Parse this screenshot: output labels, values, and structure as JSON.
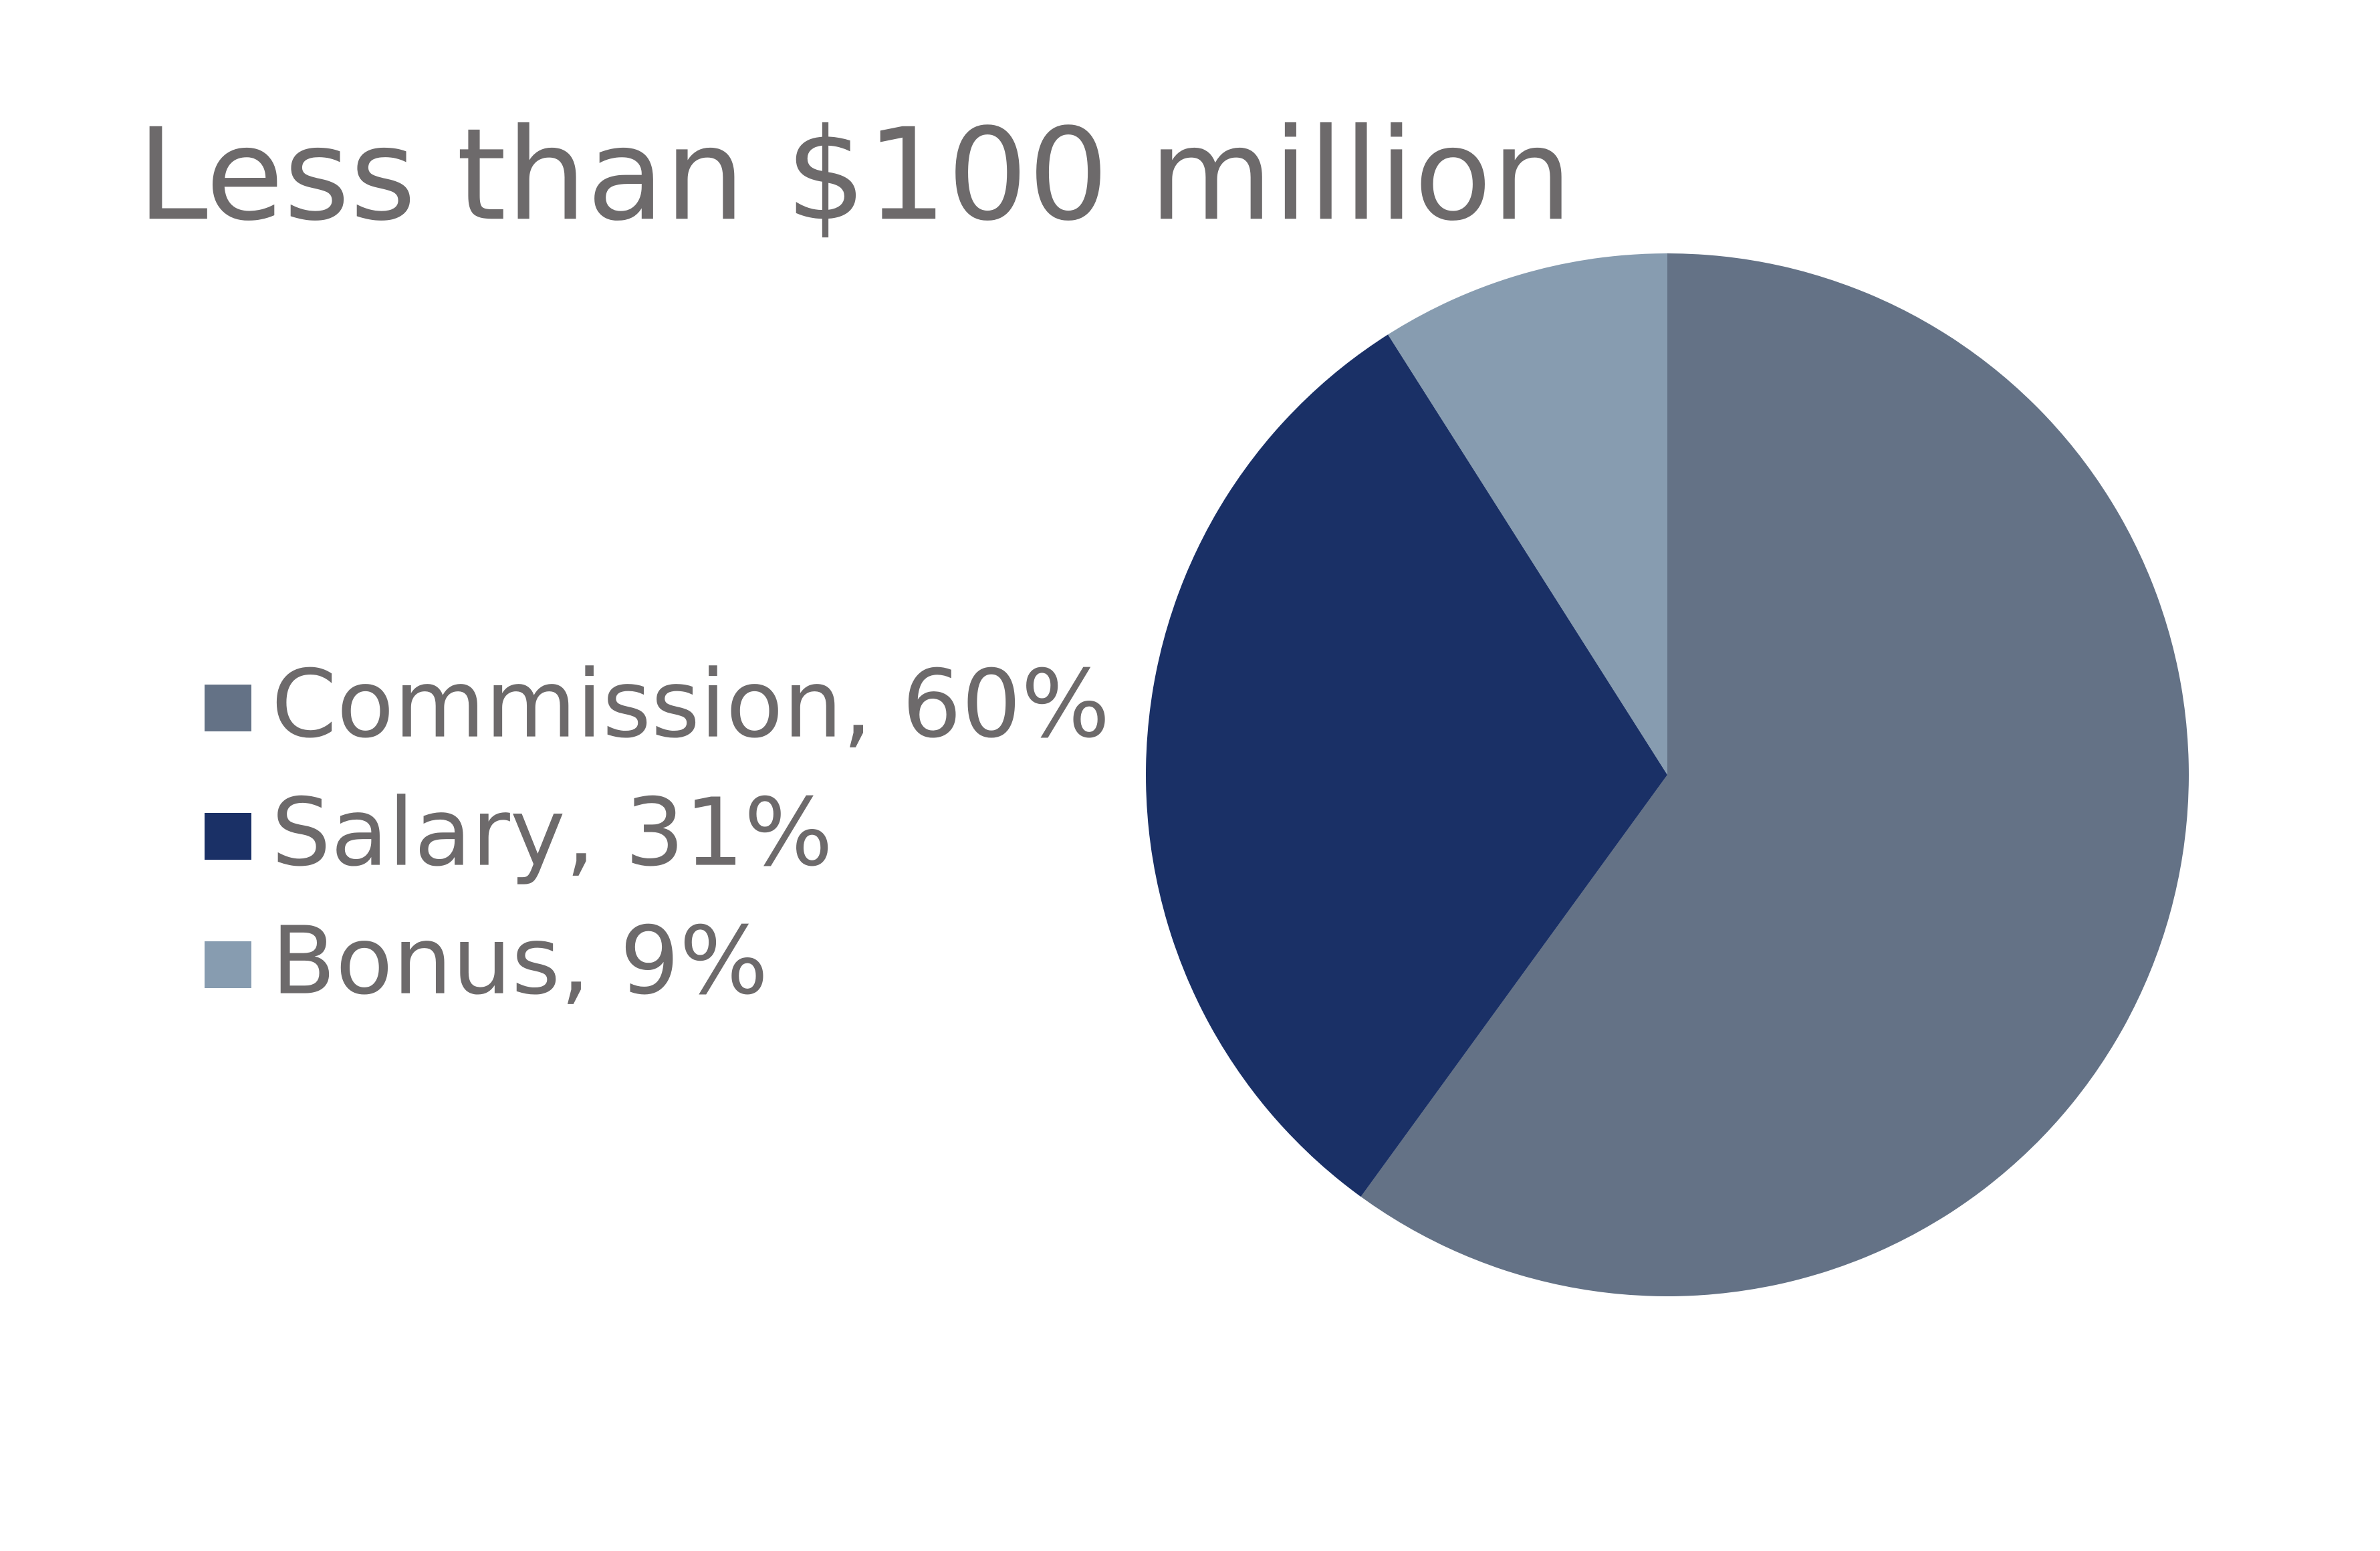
{
  "chart_data": {
    "type": "pie",
    "title": "Less than $100 million",
    "values": [
      60,
      31,
      9
    ],
    "value_labels": [
      "Commission, 60%",
      "Salary, 31%",
      "Bonus, 9%"
    ],
    "colors": [
      "#647286",
      "#1a3066",
      "#879cb0"
    ]
  }
}
